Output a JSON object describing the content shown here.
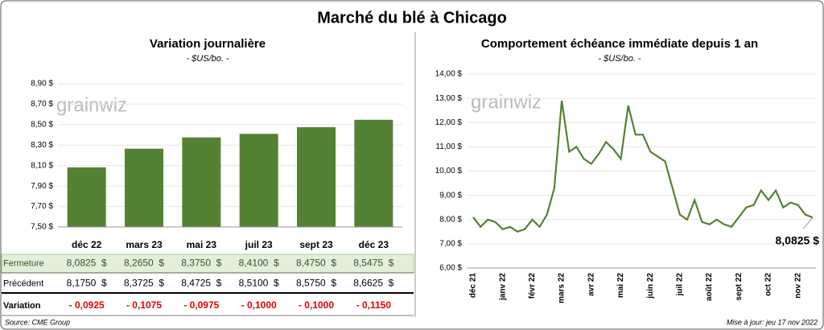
{
  "title": "Marché du blé à Chicago",
  "logo": "grainwiz",
  "chart_data": [
    {
      "type": "bar",
      "title": "Variation journalière",
      "subtitle": "- $US/bo. -",
      "categories": [
        "déc 22",
        "mars 23",
        "mai 23",
        "juil 23",
        "sept 23",
        "déc 23"
      ],
      "values": [
        8.0825,
        8.265,
        8.375,
        8.41,
        8.475,
        8.5475
      ],
      "color": "#548235",
      "ylim": [
        7.5,
        8.9
      ],
      "yticks": [
        {
          "value": 7.5,
          "label": "7,50 $"
        },
        {
          "value": 7.7,
          "label": "7,70 $"
        },
        {
          "value": 7.9,
          "label": "7,90 $"
        },
        {
          "value": 8.1,
          "label": "8,10 $"
        },
        {
          "value": 8.3,
          "label": "8,30 $"
        },
        {
          "value": 8.5,
          "label": "8,50 $"
        },
        {
          "value": 8.7,
          "label": "8,70 $"
        },
        {
          "value": 8.9,
          "label": "8,90 $"
        }
      ]
    },
    {
      "type": "line",
      "title": "Comportement échéance immédiate depuis 1 an",
      "subtitle": "- $US/bo. -",
      "categories": [
        "déc 21",
        null,
        null,
        null,
        "janv 22",
        null,
        null,
        null,
        "févr 22",
        null,
        null,
        null,
        "mars 22",
        null,
        null,
        null,
        "avr 22",
        null,
        null,
        null,
        "mai 22",
        null,
        null,
        null,
        "juin 22",
        null,
        null,
        null,
        "juil 22",
        null,
        null,
        null,
        "août 22",
        null,
        null,
        null,
        "sept 22",
        null,
        null,
        null,
        "oct 22",
        null,
        null,
        null,
        "nov 22",
        null,
        null
      ],
      "values": [
        8.1,
        7.7,
        8.0,
        7.9,
        7.6,
        7.7,
        7.5,
        7.6,
        8.0,
        7.7,
        8.2,
        9.3,
        12.9,
        10.8,
        11.0,
        10.5,
        10.3,
        10.7,
        11.2,
        10.9,
        10.5,
        12.7,
        11.5,
        11.5,
        10.8,
        10.6,
        10.4,
        9.3,
        8.2,
        8.0,
        8.8,
        7.9,
        7.8,
        8.0,
        7.8,
        7.7,
        8.1,
        8.5,
        8.6,
        9.2,
        8.8,
        9.2,
        8.5,
        8.7,
        8.6,
        8.2,
        8.0825
      ],
      "color": "#548235",
      "annotation": "8,0825 $",
      "ylim": [
        6,
        14
      ],
      "yticks": [
        {
          "value": 6,
          "label": "6,00 $"
        },
        {
          "value": 7,
          "label": "7,00 $"
        },
        {
          "value": 8,
          "label": "8,00 $"
        },
        {
          "value": 9,
          "label": "9,00 $"
        },
        {
          "value": 10,
          "label": "10,00 $"
        },
        {
          "value": 11,
          "label": "11,00 $"
        },
        {
          "value": 12,
          "label": "12,00 $"
        },
        {
          "value": 13,
          "label": "13,00 $"
        },
        {
          "value": 14,
          "label": "14,00 $"
        }
      ]
    }
  ],
  "table": {
    "rows": [
      {
        "label": "Fermeture",
        "cells": [
          "8,0825  $",
          "8,2650  $",
          "8,3750  $",
          "8,4100  $",
          "8,4750  $",
          "8,5475  $"
        ]
      },
      {
        "label": "Précédent",
        "cells": [
          "8,1750  $",
          "8,3725  $",
          "8,4725  $",
          "8,5100  $",
          "8,5750  $",
          "8,6625  $"
        ]
      },
      {
        "label": "Variation",
        "cells": [
          "- 0,0925",
          "- 0,1075",
          "- 0,0975",
          "- 0,1000",
          "- 0,1000",
          "- 0,1150"
        ]
      }
    ]
  },
  "source": "Source: CME Group",
  "updated": "Mise à jour: jeu 17 nov 2022"
}
